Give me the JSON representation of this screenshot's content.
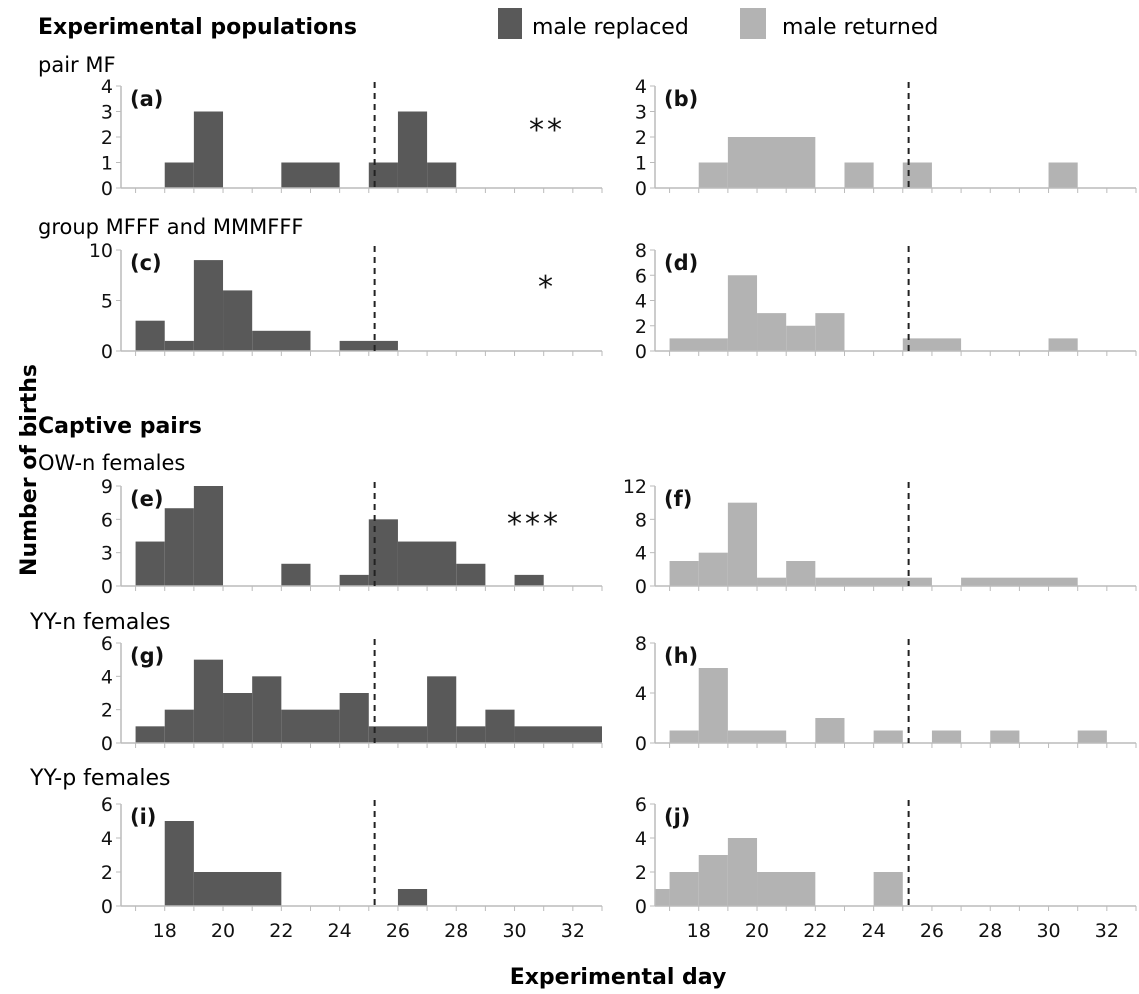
{
  "figure": {
    "y_label": "Number of births",
    "x_label": "Experimental day",
    "legend": [
      {
        "label": "male replaced",
        "color": "#595959"
      },
      {
        "label": "male returned",
        "color": "#b3b3b3"
      }
    ],
    "sections": [
      {
        "title": "Experimental populations",
        "subtitle": "pair MF"
      },
      {
        "subtitle": "group MFFF and MMMFFF"
      },
      {
        "title": "Captive pairs",
        "subtitle": "OW-n females"
      },
      {
        "subtitle": "YY-n females"
      },
      {
        "subtitle": "YY-p females"
      }
    ],
    "x_ticks": [
      "18",
      "20",
      "22",
      "24",
      "26",
      "28",
      "30",
      "32"
    ],
    "colors": {
      "replaced": "#595959",
      "returned": "#b3b3b3",
      "axis": "#bbbbbb",
      "text": "#111111"
    }
  },
  "chart_data": [
    {
      "type": "bar",
      "panel_label": "(a)",
      "series_name": "male replaced",
      "significance": "**",
      "yticks": [
        "0",
        "1",
        "2",
        "3",
        "4"
      ],
      "ylim": [
        0,
        4
      ],
      "xlim": [
        16.5,
        33
      ],
      "marker_day": 25.2,
      "bins": [
        [
          18,
          19,
          1
        ],
        [
          19,
          20,
          3
        ],
        [
          22,
          24,
          1
        ],
        [
          25,
          26,
          1
        ],
        [
          26,
          27,
          3
        ],
        [
          27,
          28,
          1
        ]
      ]
    },
    {
      "type": "bar",
      "panel_label": "(b)",
      "series_name": "male returned",
      "significance": "",
      "yticks": [
        "0",
        "1",
        "2",
        "3",
        "4"
      ],
      "ylim": [
        0,
        4
      ],
      "xlim": [
        16.5,
        33
      ],
      "marker_day": 25.2,
      "bins": [
        [
          18,
          19,
          1
        ],
        [
          19,
          22,
          2
        ],
        [
          23,
          24,
          1
        ],
        [
          25,
          26,
          1
        ],
        [
          30,
          31,
          1
        ]
      ]
    },
    {
      "type": "bar",
      "panel_label": "(c)",
      "series_name": "male replaced",
      "significance": "*",
      "yticks": [
        "0",
        "5",
        "10"
      ],
      "ylim": [
        0,
        10
      ],
      "xlim": [
        16.5,
        33
      ],
      "marker_day": 25.2,
      "bins": [
        [
          17,
          18,
          3
        ],
        [
          18,
          19,
          1
        ],
        [
          19,
          20,
          9
        ],
        [
          20,
          21,
          6
        ],
        [
          21,
          23,
          2
        ],
        [
          24,
          26,
          1
        ]
      ]
    },
    {
      "type": "bar",
      "panel_label": "(d)",
      "series_name": "male returned",
      "significance": "",
      "yticks": [
        "0",
        "2",
        "4",
        "6",
        "8"
      ],
      "ylim": [
        0,
        8
      ],
      "xlim": [
        16.5,
        33
      ],
      "marker_day": 25.2,
      "bins": [
        [
          17,
          19,
          1
        ],
        [
          19,
          20,
          6
        ],
        [
          20,
          21,
          3
        ],
        [
          21,
          22,
          2
        ],
        [
          22,
          23,
          3
        ],
        [
          25,
          27,
          1
        ],
        [
          30,
          31,
          1
        ]
      ]
    },
    {
      "type": "bar",
      "panel_label": "(e)",
      "series_name": "male replaced",
      "significance": "***",
      "yticks": [
        "0",
        "3",
        "6",
        "9"
      ],
      "ylim": [
        0,
        9
      ],
      "xlim": [
        16.5,
        33
      ],
      "marker_day": 25.2,
      "bins": [
        [
          17,
          18,
          4
        ],
        [
          18,
          19,
          7
        ],
        [
          19,
          20,
          9
        ],
        [
          22,
          23,
          2
        ],
        [
          24,
          25,
          1
        ],
        [
          25,
          26,
          6
        ],
        [
          26,
          28,
          4
        ],
        [
          28,
          29,
          2
        ],
        [
          30,
          31,
          1
        ]
      ]
    },
    {
      "type": "bar",
      "panel_label": "(f)",
      "series_name": "male returned",
      "significance": "",
      "yticks": [
        "0",
        "4",
        "8",
        "12"
      ],
      "ylim": [
        0,
        12
      ],
      "xlim": [
        16.5,
        33
      ],
      "marker_day": 25.2,
      "bins": [
        [
          17,
          18,
          3
        ],
        [
          18,
          19,
          4
        ],
        [
          19,
          20,
          10
        ],
        [
          20,
          21,
          1
        ],
        [
          21,
          22,
          3
        ],
        [
          22,
          26,
          1
        ],
        [
          27,
          31,
          1
        ]
      ]
    },
    {
      "type": "bar",
      "panel_label": "(g)",
      "series_name": "male replaced",
      "significance": "",
      "yticks": [
        "0",
        "2",
        "4",
        "6"
      ],
      "ylim": [
        0,
        6
      ],
      "xlim": [
        16.5,
        33
      ],
      "marker_day": 25.2,
      "bins": [
        [
          17,
          18,
          1
        ],
        [
          18,
          19,
          2
        ],
        [
          19,
          20,
          5
        ],
        [
          20,
          21,
          3
        ],
        [
          21,
          22,
          4
        ],
        [
          22,
          24,
          2
        ],
        [
          24,
          25,
          3
        ],
        [
          25,
          27,
          1
        ],
        [
          27,
          28,
          4
        ],
        [
          28,
          29,
          1
        ],
        [
          29,
          30,
          2
        ],
        [
          30,
          33,
          1
        ]
      ]
    },
    {
      "type": "bar",
      "panel_label": "(h)",
      "series_name": "male returned",
      "significance": "",
      "yticks": [
        "0",
        "4",
        "8"
      ],
      "ylim": [
        0,
        8
      ],
      "xlim": [
        16.5,
        33
      ],
      "marker_day": 25.2,
      "bins": [
        [
          17,
          18,
          1
        ],
        [
          18,
          19,
          6
        ],
        [
          19,
          21,
          1
        ],
        [
          22,
          23,
          2
        ],
        [
          24,
          25,
          1
        ],
        [
          26,
          27,
          1
        ],
        [
          28,
          29,
          1
        ],
        [
          31,
          32,
          1
        ]
      ]
    },
    {
      "type": "bar",
      "panel_label": "(i)",
      "series_name": "male replaced",
      "significance": "",
      "yticks": [
        "0",
        "2",
        "4",
        "6"
      ],
      "ylim": [
        0,
        6
      ],
      "xlim": [
        16.5,
        33
      ],
      "marker_day": 25.2,
      "bins": [
        [
          18,
          19,
          5
        ],
        [
          19,
          22,
          2
        ],
        [
          26,
          27,
          1
        ]
      ]
    },
    {
      "type": "bar",
      "panel_label": "(j)",
      "series_name": "male returned",
      "significance": "",
      "yticks": [
        "0",
        "2",
        "4",
        "6"
      ],
      "ylim": [
        0,
        6
      ],
      "xlim": [
        16.5,
        33
      ],
      "marker_day": 25.2,
      "bins": [
        [
          16.5,
          17,
          1
        ],
        [
          17,
          18,
          2
        ],
        [
          18,
          19,
          3
        ],
        [
          19,
          20,
          4
        ],
        [
          20,
          22,
          2
        ],
        [
          24,
          25,
          2
        ]
      ]
    }
  ]
}
